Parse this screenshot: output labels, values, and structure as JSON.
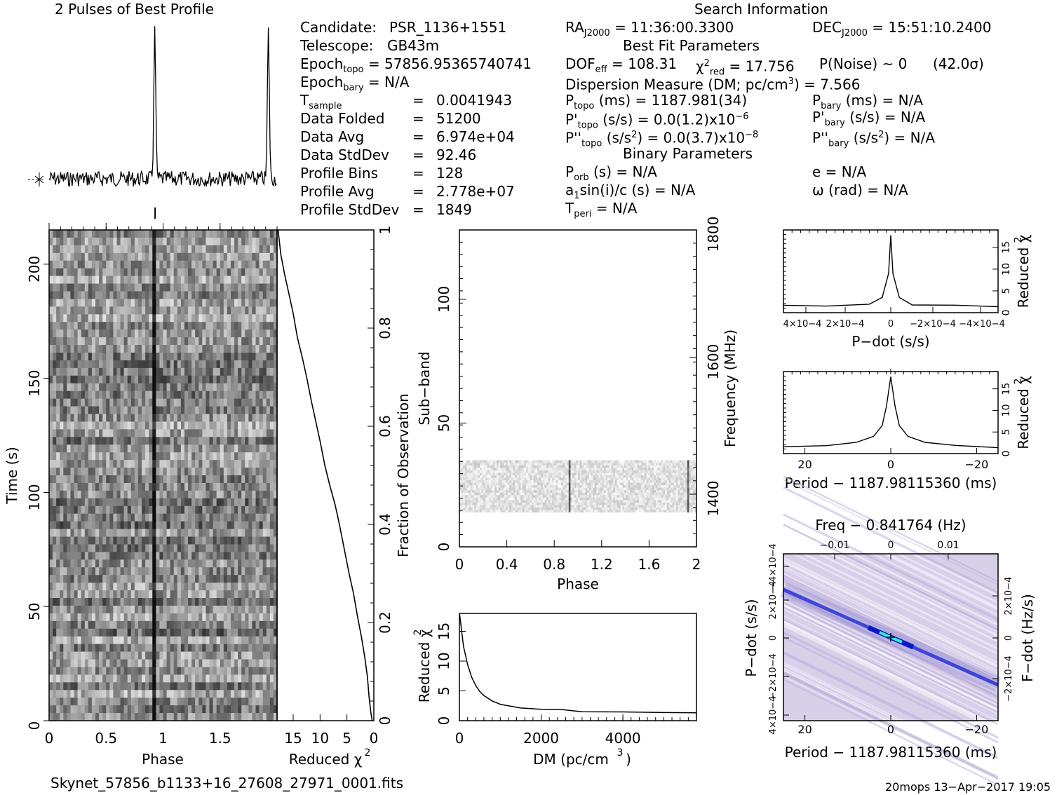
{
  "titles": {
    "profile": "2 Pulses of Best Profile",
    "search": "Search Information",
    "best_fit": "Best Fit Parameters",
    "binary": "Binary Parameters"
  },
  "candidate": {
    "candidate_label": "Candidate:",
    "candidate_value": "PSR_1136+1551",
    "telescope_label": "Telescope:",
    "telescope_value": "GB43m",
    "epoch_topo_label": "Epoch",
    "epoch_topo_sub": "topo",
    "epoch_topo_value": "= 57856.95365740741",
    "epoch_bary_label": "Epoch",
    "epoch_bary_sub": "bary",
    "epoch_bary_value": "= N/A",
    "rows": [
      {
        "label": "T",
        "sub": "sample",
        "eq": "=",
        "value": "0.0041943"
      },
      {
        "label": "Data Folded",
        "sub": "",
        "eq": "=",
        "value": "51200"
      },
      {
        "label": "Data Avg",
        "sub": "",
        "eq": "=",
        "value": "6.974e+04"
      },
      {
        "label": "Data StdDev",
        "sub": "",
        "eq": "=",
        "value": "92.46"
      },
      {
        "label": "Profile Bins",
        "sub": "",
        "eq": "=",
        "value": "128"
      },
      {
        "label": "Profile Avg",
        "sub": "",
        "eq": "=",
        "value": "2.778e+07"
      },
      {
        "label": "Profile StdDev",
        "sub": "",
        "eq": "=",
        "value": "1849"
      }
    ]
  },
  "search": {
    "ra_label": "RA",
    "ra_sub": "J2000",
    "ra_value": "= 11:36:00.3300",
    "dec_label": "DEC",
    "dec_sub": "J2000",
    "dec_value": "= 15:51:10.2400",
    "dof_label": "DOF",
    "dof_sub": "eff",
    "dof_value": "= 108.31",
    "chi_label": "χ",
    "chi_sup": "2",
    "chi_sub": "red",
    "chi_value": "= 17.756",
    "pnoise": "P(Noise) ~ 0",
    "sigma": "(42.0σ)",
    "dm_text": "Dispersion Measure (DM; pc/cm",
    "dm_sup": "3",
    "dm_value": ") = 7.566",
    "ptopo_label": "P",
    "ptopo_sub": "topo",
    "ptopo_value": "(ms) =  1187.981(34)",
    "pbary_label": "P",
    "pbary_sub": "bary",
    "pbary_value": "(ms) = N/A",
    "pdtopo_label": "P'",
    "pdtopo_sub": "topo",
    "pdtopo_value": "(s/s) = 0.0(1.2)x10",
    "pdtopo_exp": "−6",
    "pdbary_label": "P'",
    "pdbary_sub": "bary",
    "pdbary_value": "(s/s) = N/A",
    "pddtopo_label": "P''",
    "pddtopo_sub": "topo",
    "pddtopo_value": "(s/s",
    "pddtopo_unit_sup": "2",
    "pddtopo_value2": ") = 0.0(3.7)x10",
    "pddtopo_exp": "−8",
    "pddbary_label": "P''",
    "pddbary_sub": "bary",
    "pddbary_value": "(s/s",
    "pddbary_unit_sup": "2",
    "pddbary_value2": ") = N/A",
    "porb_label": "P",
    "porb_sub": "orb",
    "porb_value": "(s) = N/A",
    "e_text": "e = N/A",
    "a1_text_a": "a",
    "a1_sub": "1",
    "a1_text_b": "sin(i)/c (s) = N/A",
    "omega_text": "ω (rad) = N/A",
    "tperi_label": "T",
    "tperi_sub": "peri",
    "tperi_value": "= N/A"
  },
  "footer": {
    "filename": "Skynet_57856_b1133+16_27608_27971_0001.fits",
    "stamp": "20mops 13−Apr−2017 19:05"
  },
  "colors": {
    "ink": "#000000",
    "bg": "#ffffff",
    "grayscale_dark": "#1a1a1a",
    "ppdot_bg": "#d8cfe9",
    "ppdot_line": "#1e2cd6",
    "ppdot_core": "#2ff0d0"
  },
  "chart_data": [
    {
      "type": "line",
      "id": "profile",
      "title": "2 Pulses of Best Profile",
      "x_range": [
        0,
        2
      ],
      "peaks_phase": [
        0.93,
        1.93
      ],
      "peak_height_relative": 1.0,
      "xlabel": "",
      "ylabel": ""
    },
    {
      "type": "heatmap",
      "id": "time-phase",
      "xlabel": "Phase",
      "ylabel": "Time (s)",
      "x_ticks": [
        "0",
        "0.5",
        "1",
        "1.5"
      ],
      "y_ticks": [
        "0",
        "50",
        "100",
        "150",
        "200"
      ],
      "xlim": [
        0,
        2
      ],
      "ylim": [
        0,
        215
      ],
      "pulse_phase": [
        0.93
      ]
    },
    {
      "type": "line",
      "id": "time-chi2",
      "xlabel": "Reduced χ2",
      "ylabel": "Fraction of Observation",
      "x_ticks": [
        "15",
        "10",
        "5",
        "0"
      ],
      "y_ticks": [
        "0",
        "0.2",
        "0.4",
        "0.6",
        "0.8",
        "1"
      ],
      "xlim": [
        18,
        0
      ],
      "ylim": [
        0,
        1
      ],
      "x": [
        0.3,
        0.6,
        0.9,
        1.2,
        1.7,
        2.3,
        3.0,
        3.8,
        4.6,
        5.5,
        6.4,
        7.2,
        8.2,
        9.1,
        10.0,
        10.8,
        11.6,
        12.5,
        13.3,
        14.2,
        15.0,
        15.8,
        16.6,
        17.3,
        17.8
      ],
      "y": [
        0.0,
        0.02,
        0.05,
        0.09,
        0.13,
        0.17,
        0.21,
        0.26,
        0.3,
        0.35,
        0.4,
        0.44,
        0.48,
        0.52,
        0.57,
        0.61,
        0.65,
        0.7,
        0.74,
        0.78,
        0.83,
        0.87,
        0.91,
        0.95,
        1.0
      ]
    },
    {
      "type": "heatmap",
      "id": "subband-phase",
      "xlabel": "Phase",
      "ylabel": "Sub−band",
      "y2label": "Frequency (MHz)",
      "x_ticks": [
        "0",
        "0.4",
        "0.8",
        "1.2",
        "1.6",
        "2"
      ],
      "y_ticks": [
        "0",
        "50",
        "100"
      ],
      "y2_ticks": [
        "1400",
        "1600",
        "1800"
      ],
      "xlim": [
        0,
        2
      ],
      "ylim": [
        0,
        128
      ],
      "band_subbands": [
        14,
        35
      ],
      "pulse_phase": [
        0.93,
        1.93
      ]
    },
    {
      "type": "line",
      "id": "dm-chi2",
      "xlabel": "DM (pc/cm3)",
      "ylabel": "Reduced χ2",
      "x_ticks": [
        "0",
        "2000",
        "4000"
      ],
      "y_ticks": [
        "0",
        "5",
        "10",
        "15"
      ],
      "xlim": [
        0,
        5800
      ],
      "ylim": [
        0,
        18
      ],
      "x": [
        7.566,
        100,
        200,
        300,
        400,
        500,
        600,
        800,
        1000,
        1200,
        1500,
        2000,
        2500,
        3000,
        4000,
        5000,
        5800
      ],
      "y": [
        17.8,
        12.5,
        9.4,
        7.3,
        5.9,
        4.9,
        4.2,
        3.3,
        2.8,
        2.4,
        2.1,
        1.8,
        1.7,
        1.6,
        1.5,
        1.5,
        1.5
      ]
    },
    {
      "type": "line",
      "id": "pdot-chi2",
      "xlabel": "P−dot (s/s)",
      "ylabel": "Reduced χ2",
      "x_ticks": [
        "4×10−4",
        "2×10−4",
        "0",
        "−2×10−4",
        "−4×10−4"
      ],
      "y_ticks": [
        "0",
        "5",
        "10",
        "15"
      ],
      "xlim": [
        0.0005,
        -0.0005
      ],
      "ylim": [
        0,
        19
      ],
      "x": [
        0.0005,
        0.0003,
        0.0001,
        4e-05,
        1e-05,
        0.0,
        -1e-05,
        -4e-05,
        -0.0001,
        -0.0003,
        -0.0005
      ],
      "y": [
        1.5,
        1.6,
        2.0,
        3.5,
        9.0,
        17.8,
        9.0,
        3.5,
        2.0,
        1.6,
        1.5
      ]
    },
    {
      "type": "line",
      "id": "period-chi2",
      "xlabel": "Period − 1187.98115360 (ms)",
      "ylabel": "Reduced χ2",
      "x_ticks": [
        "20",
        "0",
        "−20"
      ],
      "y_ticks": [
        "0",
        "5",
        "10",
        "15"
      ],
      "xlim": [
        25,
        -25
      ],
      "ylim": [
        0,
        19
      ],
      "x": [
        25,
        15,
        8,
        4,
        2,
        1,
        0,
        -1,
        -2,
        -4,
        -8,
        -15,
        -25
      ],
      "y": [
        1.4,
        1.8,
        2.6,
        4.0,
        6.5,
        11.0,
        17.8,
        11.0,
        6.5,
        4.0,
        2.6,
        1.8,
        1.4
      ]
    },
    {
      "type": "heatmap",
      "id": "period-pdot",
      "xlabel": "Period − 1187.98115360 (ms)",
      "ylabel": "P−dot (s/s)",
      "x2label": "Freq − 0.841764 (Hz)",
      "y2label": "F−dot (Hz/s)",
      "x_ticks": [
        "20",
        "0",
        "−20"
      ],
      "x2_ticks": [
        "−0.01",
        "0",
        "0.01"
      ],
      "y_ticks": [
        "4×10−4",
        "−2×10−4",
        "0",
        "2×10−4",
        "−4×10−4"
      ],
      "y2_ticks": [
        "2×10−4",
        "0",
        "−2×10−4"
      ],
      "xlim": [
        25,
        -25
      ],
      "ylim": [
        0.0005,
        -0.0005
      ],
      "best": [
        0,
        0
      ]
    }
  ]
}
